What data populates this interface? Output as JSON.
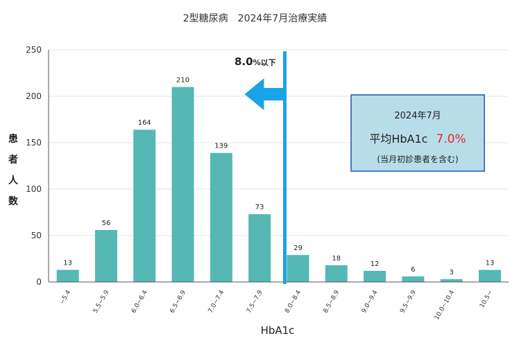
{
  "title": "2型糖尿病　2024年7月治療実績",
  "threshold_label": {
    "main": "8.0",
    "suffix": "%以下"
  },
  "info_box": {
    "month": "2024年7月",
    "avg_label": "平均HbA1c",
    "avg_value": "7.0%",
    "note": "(当月初診患者を含む)"
  },
  "colors": {
    "bar": "#55b8b5",
    "threshold_line": "#1aa3e8",
    "arrow": "#1aa3e8",
    "grid": "#e6e6e6",
    "avg_value": "#e8262a"
  },
  "chart_data": {
    "type": "bar",
    "title": "2型糖尿病　2024年7月治療実績",
    "xlabel": "HbA1c",
    "ylabel": "患者人数",
    "categories": [
      "~5.4",
      "5.5~5.9",
      "6.0~6.4",
      "6.5~6.9",
      "7.0~7.4",
      "7.5~7.9",
      "8.0~8.4",
      "8.5~8.9",
      "9.0~9.4",
      "9.5~9.9",
      "10.0~10.4",
      "10.5~"
    ],
    "values": [
      13,
      56,
      164,
      210,
      139,
      73,
      29,
      18,
      12,
      6,
      3,
      13
    ],
    "ylim": [
      0,
      250
    ],
    "yticks": [
      0,
      50,
      100,
      150,
      200,
      250
    ],
    "grid": true,
    "threshold": {
      "between": [
        "7.5~7.9",
        "8.0~8.4"
      ],
      "label": "8.0%以下",
      "arrow": "left"
    }
  }
}
